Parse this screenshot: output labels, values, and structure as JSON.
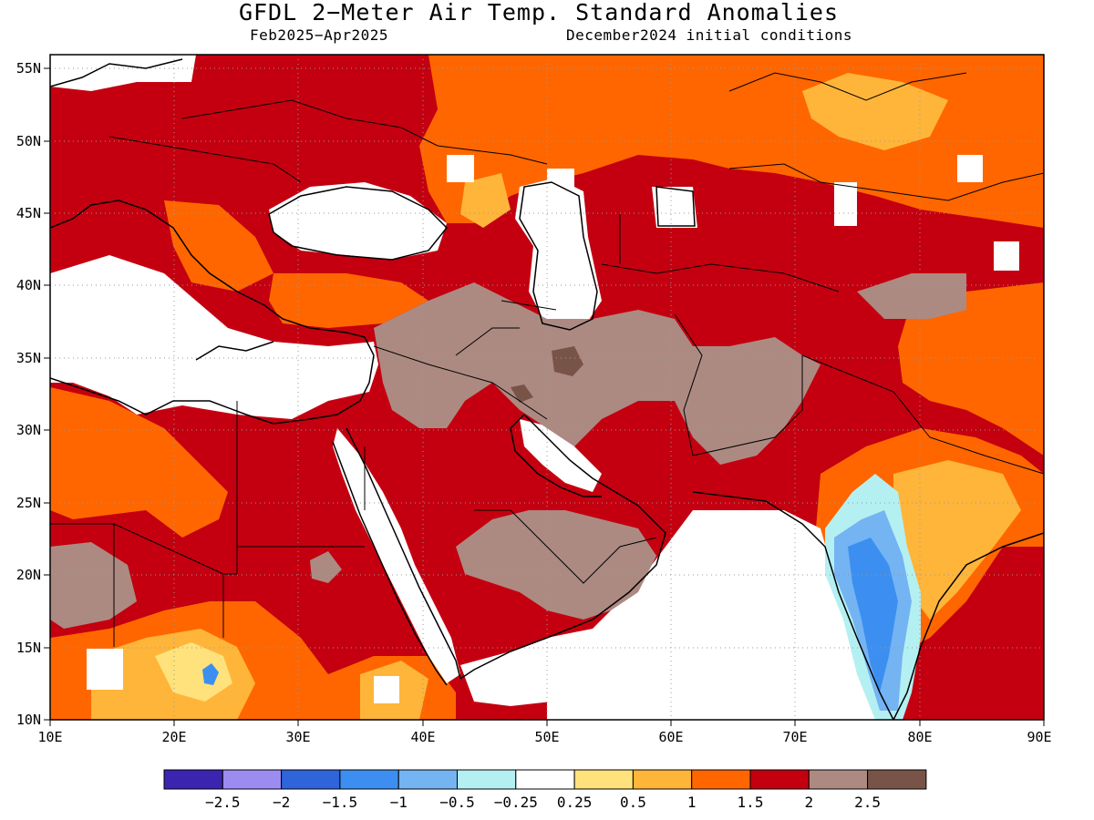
{
  "title": "GFDL 2−Meter Air Temp. Standard Anomalies",
  "subtitle_left": "Feb2025−Apr2025",
  "subtitle_right": "December2024 initial conditions",
  "axes": {
    "lon_ticks": [
      "10E",
      "20E",
      "30E",
      "40E",
      "50E",
      "60E",
      "70E",
      "80E",
      "90E"
    ],
    "lat_ticks": [
      "55N",
      "50N",
      "45N",
      "40N",
      "35N",
      "30N",
      "25N",
      "20N",
      "15N",
      "10N"
    ]
  },
  "colorbar": {
    "colors": [
      "#3a24b0",
      "#9c8cf2",
      "#2f64db",
      "#3c8ff0",
      "#74b4f2",
      "#b4f0f2",
      "#ffffff",
      "#ffe27c",
      "#ffb53a",
      "#ff6600",
      "#c40010",
      "#ac8a82",
      "#785448"
    ],
    "labels": [
      "−2.5",
      "−2",
      "−1.5",
      "−1",
      "−0.5",
      "−0.25",
      "0.25",
      "0.5",
      "1",
      "1.5",
      "2",
      "2.5"
    ]
  },
  "legend_meaning": {
    "white": "-0.25 to 0.25 / missing",
    "dark_red": "1.5 to 2",
    "brown": "2 to 2.5",
    "dark_brown": "above 2.5"
  }
}
